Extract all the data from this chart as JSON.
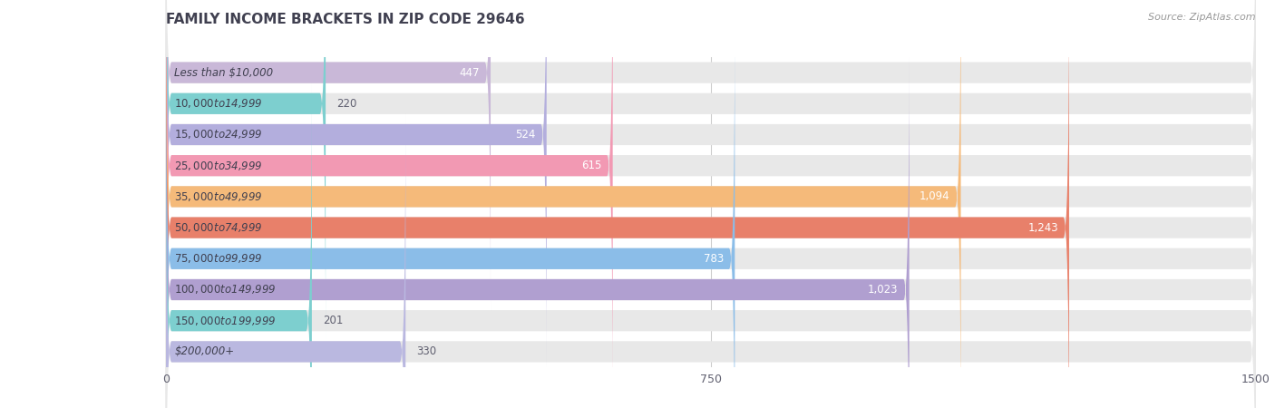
{
  "title": "FAMILY INCOME BRACKETS IN ZIP CODE 29646",
  "source": "Source: ZipAtlas.com",
  "categories": [
    "Less than $10,000",
    "$10,000 to $14,999",
    "$15,000 to $24,999",
    "$25,000 to $34,999",
    "$35,000 to $49,999",
    "$50,000 to $74,999",
    "$75,000 to $99,999",
    "$100,000 to $149,999",
    "$150,000 to $199,999",
    "$200,000+"
  ],
  "values": [
    447,
    220,
    524,
    615,
    1094,
    1243,
    783,
    1023,
    201,
    330
  ],
  "bar_colors": [
    "#c9b8d8",
    "#7dcfcf",
    "#b3aedd",
    "#f299b3",
    "#f5ba7a",
    "#e8806a",
    "#8bbde8",
    "#b09fd0",
    "#7dcfcf",
    "#bab8e0"
  ],
  "xlim": [
    0,
    1500
  ],
  "xticks": [
    0,
    750,
    1500
  ],
  "bg_color": "#f5f5f5",
  "bar_bg_color": "#e8e8e8",
  "title_color": "#404050",
  "label_color": "#404050",
  "value_color_inside": "#ffffff",
  "value_color_outside": "#606070",
  "title_fontsize": 11,
  "label_fontsize": 8.5,
  "value_fontsize": 8.5,
  "source_fontsize": 8
}
